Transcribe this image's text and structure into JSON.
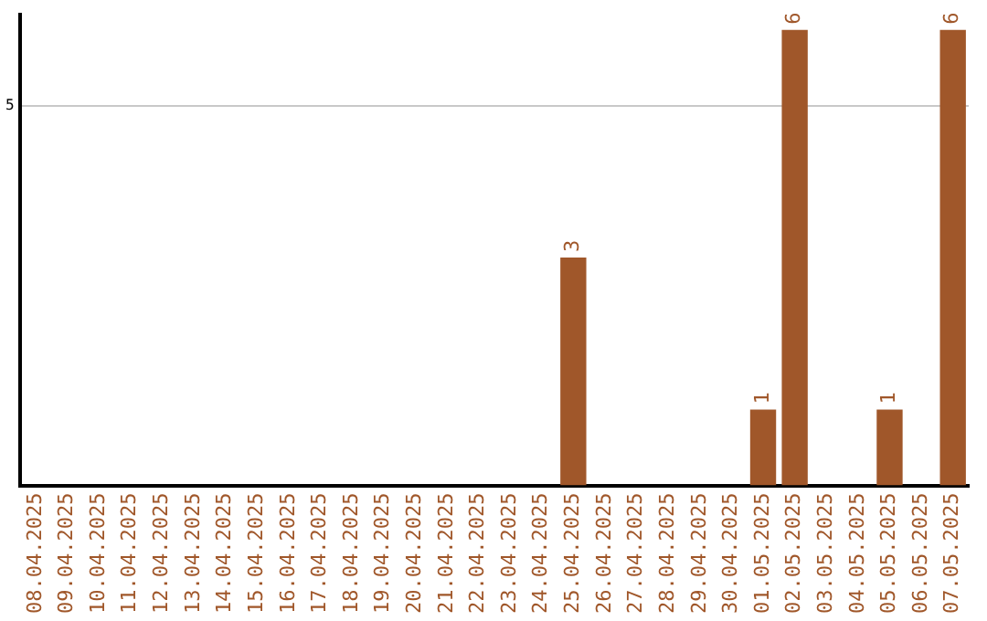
{
  "chart_data": {
    "type": "bar",
    "categories": [
      "08.04.2025",
      "09.04.2025",
      "10.04.2025",
      "11.04.2025",
      "12.04.2025",
      "13.04.2025",
      "14.04.2025",
      "15.04.2025",
      "16.04.2025",
      "17.04.2025",
      "18.04.2025",
      "19.04.2025",
      "20.04.2025",
      "21.04.2025",
      "22.04.2025",
      "23.04.2025",
      "24.04.2025",
      "25.04.2025",
      "26.04.2025",
      "27.04.2025",
      "28.04.2025",
      "29.04.2025",
      "30.04.2025",
      "01.05.2025",
      "02.05.2025",
      "03.05.2025",
      "04.05.2025",
      "05.05.2025",
      "06.05.2025",
      "07.05.2025"
    ],
    "values": [
      null,
      null,
      null,
      null,
      null,
      null,
      null,
      null,
      null,
      null,
      null,
      null,
      null,
      null,
      null,
      null,
      null,
      3,
      null,
      null,
      null,
      null,
      null,
      1,
      6,
      null,
      null,
      1,
      null,
      6
    ],
    "data_labels": true,
    "color": "#a0572a",
    "ylim": [
      0,
      6.2
    ],
    "yticks": [
      5
    ],
    "grid": "y",
    "legend": false
  }
}
